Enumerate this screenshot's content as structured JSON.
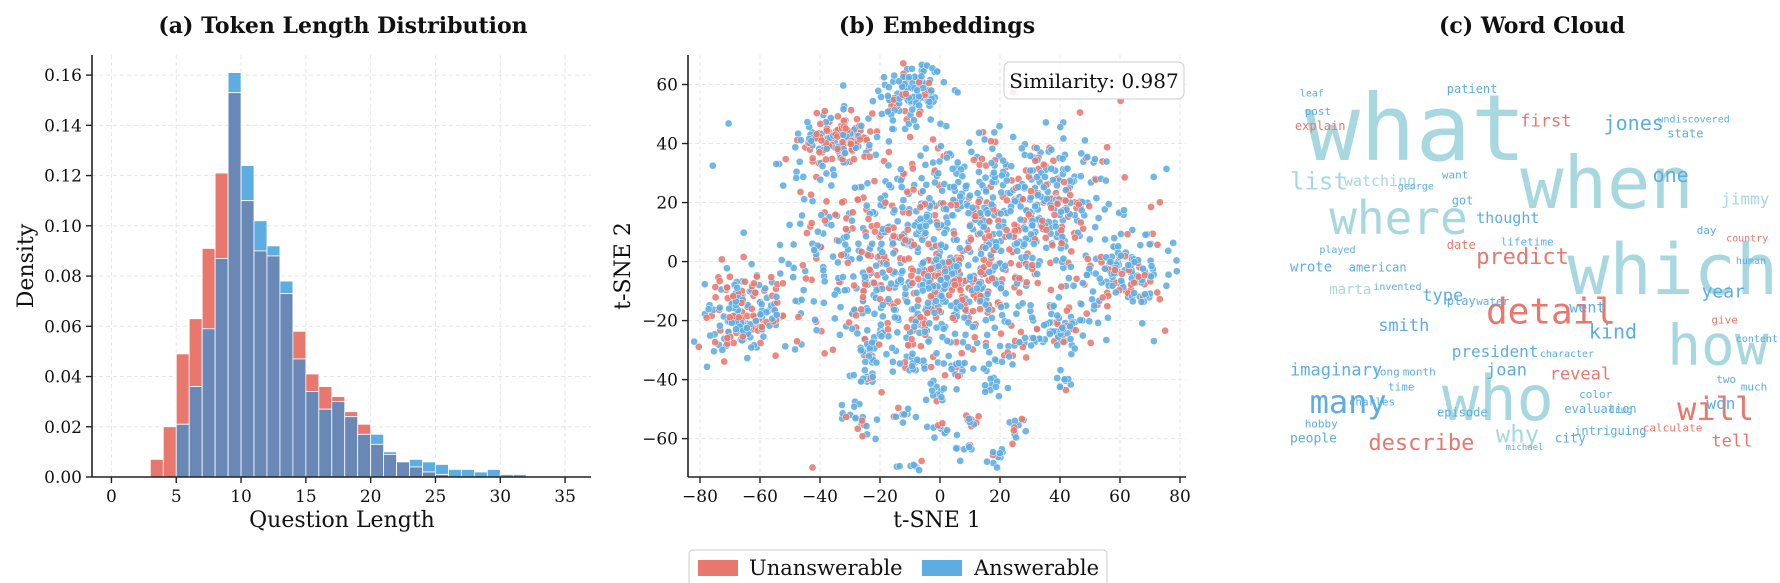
{
  "colors": {
    "unanswerable": "#e8776e",
    "answerable": "#5dade2",
    "overlap": "#6a88b5",
    "wordcloud_light": "#a8d8df"
  },
  "legend": {
    "unanswerable": "Unanswerable",
    "answerable": "Answerable"
  },
  "chart_data": [
    {
      "type": "bar",
      "title": "(a) Token Length Distribution",
      "xlabel": "Question Length",
      "ylabel": "Density",
      "xlim": [
        -1.5,
        37
      ],
      "ylim": [
        0,
        0.168
      ],
      "xticks": [
        "0",
        "5",
        "10",
        "15",
        "20",
        "25",
        "30",
        "35"
      ],
      "yticks": [
        "0.00",
        "0.02",
        "0.04",
        "0.06",
        "0.08",
        "0.10",
        "0.12",
        "0.14",
        "0.16"
      ],
      "bin_edges": [
        3,
        4,
        5,
        6,
        7,
        8,
        9,
        10,
        11,
        12,
        13,
        14,
        15,
        16,
        17,
        18,
        19,
        20,
        21,
        22,
        23,
        24,
        25,
        26,
        27,
        28,
        29,
        30,
        31,
        32,
        33,
        34,
        35
      ],
      "series": [
        {
          "name": "Unanswerable",
          "values": [
            0.007,
            0.02,
            0.049,
            0.063,
            0.091,
            0.121,
            0.153,
            0.11,
            0.09,
            0.088,
            0.073,
            0.058,
            0.041,
            0.036,
            0.032,
            0.026,
            0.021,
            0.013,
            0.009,
            0.006,
            0.004,
            0.002,
            0.001,
            0.0,
            0.0,
            0.0,
            0.0,
            0.0,
            0.0,
            0.0,
            0.0,
            0.0
          ]
        },
        {
          "name": "Answerable",
          "values": [
            0.0,
            0.0,
            0.021,
            0.036,
            0.059,
            0.087,
            0.161,
            0.124,
            0.102,
            0.092,
            0.078,
            0.047,
            0.034,
            0.027,
            0.03,
            0.024,
            0.017,
            0.017,
            0.01,
            0.006,
            0.007,
            0.006,
            0.005,
            0.003,
            0.003,
            0.002,
            0.003,
            0.001,
            0.001,
            0.0,
            0.0,
            0.0
          ]
        }
      ]
    },
    {
      "type": "scatter",
      "title": "(b) Embeddings",
      "xlabel": "t-SNE 1",
      "ylabel": "t-SNE 2",
      "xlim": [
        -84,
        82
      ],
      "ylim": [
        -73,
        70
      ],
      "xticks": [
        "−80",
        "−60",
        "−40",
        "−20",
        "0",
        "20",
        "40",
        "60",
        "80"
      ],
      "yticks": [
        "−60",
        "−40",
        "−20",
        "0",
        "20",
        "40",
        "60"
      ],
      "annotation": "Similarity: 0.987",
      "clusters": [
        {
          "cx": -10,
          "cy": 57,
          "sx": 6,
          "sy": 5,
          "n": 120,
          "red": 0.15
        },
        {
          "cx": -35,
          "cy": 42,
          "sx": 6,
          "sy": 4,
          "n": 140,
          "red": 0.55
        },
        {
          "cx": -65,
          "cy": -18,
          "sx": 7,
          "sy": 7,
          "n": 180,
          "red": 0.4
        },
        {
          "cx": -20,
          "cy": 5,
          "sx": 16,
          "sy": 15,
          "n": 260,
          "red": 0.35
        },
        {
          "cx": 5,
          "cy": -10,
          "sx": 9,
          "sy": 7,
          "n": 160,
          "red": 0.6
        },
        {
          "cx": 15,
          "cy": 15,
          "sx": 16,
          "sy": 14,
          "n": 300,
          "red": 0.3
        },
        {
          "cx": 35,
          "cy": 20,
          "sx": 10,
          "sy": 10,
          "n": 160,
          "red": 0.3
        },
        {
          "cx": 62,
          "cy": -5,
          "sx": 8,
          "sy": 6,
          "n": 130,
          "red": 0.3
        },
        {
          "cx": 40,
          "cy": -22,
          "sx": 6,
          "sy": 5,
          "n": 70,
          "red": 0.35
        },
        {
          "cx": -10,
          "cy": -20,
          "sx": 12,
          "sy": 8,
          "n": 100,
          "red": 0.3
        },
        {
          "cx": -22,
          "cy": -30,
          "sx": 3,
          "sy": 2,
          "n": 15,
          "red": 0.2
        },
        {
          "cx": -10,
          "cy": -35,
          "sx": 3,
          "sy": 2,
          "n": 15,
          "red": 0.2
        },
        {
          "cx": 5,
          "cy": -35,
          "sx": 3,
          "sy": 2,
          "n": 15,
          "red": 0.2
        },
        {
          "cx": 20,
          "cy": -32,
          "sx": 3,
          "sy": 2,
          "n": 12,
          "red": 0.3
        },
        {
          "cx": 28,
          "cy": -28,
          "sx": 3,
          "sy": 2,
          "n": 12,
          "red": 0.2
        },
        {
          "cx": -25,
          "cy": -40,
          "sx": 2,
          "sy": 2,
          "n": 12,
          "red": 0.2
        },
        {
          "cx": -1,
          "cy": -45,
          "sx": 2,
          "sy": 2,
          "n": 12,
          "red": 0.2
        },
        {
          "cx": 17,
          "cy": -42,
          "sx": 2,
          "sy": 2,
          "n": 12,
          "red": 0.2
        },
        {
          "cx": 41,
          "cy": -40,
          "sx": 2,
          "sy": 2,
          "n": 10,
          "red": 0.2
        },
        {
          "cx": -29,
          "cy": -51,
          "sx": 2,
          "sy": 2,
          "n": 10,
          "red": 0.3
        },
        {
          "cx": -26,
          "cy": -55,
          "sx": 2,
          "sy": 2,
          "n": 10,
          "red": 0.2
        },
        {
          "cx": -12,
          "cy": -52,
          "sx": 2,
          "sy": 2,
          "n": 10,
          "red": 0.2
        },
        {
          "cx": -1,
          "cy": -56,
          "sx": 2,
          "sy": 2,
          "n": 10,
          "red": 0.2
        },
        {
          "cx": 12,
          "cy": -54,
          "sx": 2,
          "sy": 2,
          "n": 10,
          "red": 0.3
        },
        {
          "cx": 26,
          "cy": -55,
          "sx": 2,
          "sy": 2,
          "n": 10,
          "red": 0.2
        },
        {
          "cx": 7,
          "cy": -63,
          "sx": 2,
          "sy": 2,
          "n": 10,
          "red": 0.2
        },
        {
          "cx": 19,
          "cy": -66,
          "sx": 2,
          "sy": 2,
          "n": 10,
          "red": 0.2
        },
        {
          "cx": -10,
          "cy": -69,
          "sx": 2,
          "sy": 1,
          "n": 8,
          "red": 0.2
        },
        {
          "cx": 0,
          "cy": 5,
          "sx": 38,
          "sy": 22,
          "n": 220,
          "red": 0.35
        }
      ]
    },
    {
      "type": "wordcloud",
      "title": "(c) Word Cloud",
      "words": [
        {
          "text": "what",
          "size": 92,
          "color": "light",
          "x": 0.03,
          "y": 0.22
        },
        {
          "text": "when",
          "size": 72,
          "color": "light",
          "x": 0.47,
          "y": 0.35
        },
        {
          "text": "which",
          "size": 70,
          "color": "light",
          "x": 0.58,
          "y": 0.58
        },
        {
          "text": "who",
          "size": 62,
          "color": "light",
          "x": 0.31,
          "y": 0.92
        },
        {
          "text": "how",
          "size": 56,
          "color": "light",
          "x": 0.77,
          "y": 0.77
        },
        {
          "text": "where",
          "size": 46,
          "color": "light",
          "x": 0.08,
          "y": 0.42
        },
        {
          "text": "detail",
          "size": 36,
          "color": "red",
          "x": 0.4,
          "y": 0.66
        },
        {
          "text": "many",
          "size": 32,
          "color": "blue",
          "x": 0.04,
          "y": 0.9
        },
        {
          "text": "will",
          "size": 32,
          "color": "red",
          "x": 0.79,
          "y": 0.92
        },
        {
          "text": "describe",
          "size": 22,
          "color": "red",
          "x": 0.16,
          "y": 1.0
        },
        {
          "text": "predict",
          "size": 22,
          "color": "red",
          "x": 0.38,
          "y": 0.5
        },
        {
          "text": "list",
          "size": 24,
          "color": "light",
          "x": 0.0,
          "y": 0.3
        },
        {
          "text": "jones",
          "size": 20,
          "color": "blue",
          "x": 0.64,
          "y": 0.14
        },
        {
          "text": "one",
          "size": 20,
          "color": "blue",
          "x": 0.74,
          "y": 0.28
        },
        {
          "text": "why",
          "size": 24,
          "color": "light",
          "x": 0.42,
          "y": 0.98
        },
        {
          "text": "year",
          "size": 18,
          "color": "blue",
          "x": 0.84,
          "y": 0.59
        },
        {
          "text": "kind",
          "size": 20,
          "color": "blue",
          "x": 0.61,
          "y": 0.7
        },
        {
          "text": "smith",
          "size": 17,
          "color": "blue",
          "x": 0.18,
          "y": 0.68
        },
        {
          "text": "type",
          "size": 17,
          "color": "blue",
          "x": 0.27,
          "y": 0.6
        },
        {
          "text": "imaginary",
          "size": 17,
          "color": "blue",
          "x": 0.0,
          "y": 0.8
        },
        {
          "text": "president",
          "size": 16,
          "color": "blue",
          "x": 0.33,
          "y": 0.75
        },
        {
          "text": "joan",
          "size": 17,
          "color": "blue",
          "x": 0.4,
          "y": 0.8
        },
        {
          "text": "reveal",
          "size": 17,
          "color": "red",
          "x": 0.53,
          "y": 0.81
        },
        {
          "text": "first",
          "size": 17,
          "color": "red",
          "x": 0.47,
          "y": 0.13
        },
        {
          "text": "tell",
          "size": 17,
          "color": "red",
          "x": 0.86,
          "y": 0.99
        },
        {
          "text": "won",
          "size": 16,
          "color": "blue",
          "x": 0.85,
          "y": 0.89
        },
        {
          "text": "thought",
          "size": 15,
          "color": "blue",
          "x": 0.38,
          "y": 0.39
        },
        {
          "text": "watching",
          "size": 15,
          "color": "light",
          "x": 0.11,
          "y": 0.29
        },
        {
          "text": "went",
          "size": 15,
          "color": "blue",
          "x": 0.57,
          "y": 0.63
        },
        {
          "text": "jimmy",
          "size": 16,
          "color": "light",
          "x": 0.88,
          "y": 0.34
        },
        {
          "text": "wrote",
          "size": 14,
          "color": "blue",
          "x": 0.0,
          "y": 0.52
        },
        {
          "text": "american",
          "size": 12,
          "color": "blue",
          "x": 0.12,
          "y": 0.52
        },
        {
          "text": "marta",
          "size": 14,
          "color": "light",
          "x": 0.08,
          "y": 0.58
        },
        {
          "text": "people",
          "size": 13,
          "color": "blue",
          "x": 0.0,
          "y": 0.98
        },
        {
          "text": "city",
          "size": 13,
          "color": "blue",
          "x": 0.54,
          "y": 0.98
        },
        {
          "text": "explain",
          "size": 12,
          "color": "red",
          "x": 0.01,
          "y": 0.14
        },
        {
          "text": "patient",
          "size": 12,
          "color": "blue",
          "x": 0.32,
          "y": 0.04
        },
        {
          "text": "state",
          "size": 12,
          "color": "blue",
          "x": 0.77,
          "y": 0.16
        },
        {
          "text": "got",
          "size": 12,
          "color": "blue",
          "x": 0.33,
          "y": 0.34
        },
        {
          "text": "date",
          "size": 12,
          "color": "red",
          "x": 0.32,
          "y": 0.46
        },
        {
          "text": "lifetime",
          "size": 11,
          "color": "blue",
          "x": 0.43,
          "y": 0.45
        },
        {
          "text": "water",
          "size": 11,
          "color": "blue",
          "x": 0.38,
          "y": 0.61
        },
        {
          "text": "play",
          "size": 12,
          "color": "blue",
          "x": 0.32,
          "y": 0.61
        },
        {
          "text": "month",
          "size": 11,
          "color": "blue",
          "x": 0.23,
          "y": 0.8
        },
        {
          "text": "long",
          "size": 11,
          "color": "blue",
          "x": 0.17,
          "y": 0.8
        },
        {
          "text": "time",
          "size": 11,
          "color": "blue",
          "x": 0.2,
          "y": 0.84
        },
        {
          "text": "charles",
          "size": 11,
          "color": "blue",
          "x": 0.12,
          "y": 0.88
        },
        {
          "text": "episode",
          "size": 12,
          "color": "blue",
          "x": 0.3,
          "y": 0.91
        },
        {
          "text": "evaluation",
          "size": 12,
          "color": "blue",
          "x": 0.56,
          "y": 0.9
        },
        {
          "text": "intriguing",
          "size": 12,
          "color": "blue",
          "x": 0.58,
          "y": 0.96
        },
        {
          "text": "hobby",
          "size": 11,
          "color": "blue",
          "x": 0.03,
          "y": 0.94
        },
        {
          "text": "color",
          "size": 11,
          "color": "blue",
          "x": 0.59,
          "y": 0.86
        },
        {
          "text": "calculate",
          "size": 11,
          "color": "red",
          "x": 0.72,
          "y": 0.95
        },
        {
          "text": "give",
          "size": 11,
          "color": "red",
          "x": 0.86,
          "y": 0.66
        },
        {
          "text": "country",
          "size": 10,
          "color": "red",
          "x": 0.89,
          "y": 0.44
        },
        {
          "text": "much",
          "size": 11,
          "color": "blue",
          "x": 0.92,
          "y": 0.84
        },
        {
          "text": "two",
          "size": 11,
          "color": "blue",
          "x": 0.87,
          "y": 0.82
        },
        {
          "text": "day",
          "size": 11,
          "color": "blue",
          "x": 0.83,
          "y": 0.42
        },
        {
          "text": "want",
          "size": 11,
          "color": "blue",
          "x": 0.31,
          "y": 0.27
        },
        {
          "text": "george",
          "size": 10,
          "color": "blue",
          "x": 0.22,
          "y": 0.3
        },
        {
          "text": "leaf",
          "size": 10,
          "color": "blue",
          "x": 0.02,
          "y": 0.05
        },
        {
          "text": "post",
          "size": 11,
          "color": "blue",
          "x": 0.03,
          "y": 0.1
        },
        {
          "text": "undiscovered",
          "size": 10,
          "color": "blue",
          "x": 0.75,
          "y": 0.12
        },
        {
          "text": "human",
          "size": 10,
          "color": "blue",
          "x": 0.91,
          "y": 0.5
        },
        {
          "text": "content",
          "size": 10,
          "color": "blue",
          "x": 0.92,
          "y": 0.71
        },
        {
          "text": "played",
          "size": 10,
          "color": "blue",
          "x": 0.06,
          "y": 0.47
        },
        {
          "text": "invented",
          "size": 10,
          "color": "blue",
          "x": 0.17,
          "y": 0.57
        },
        {
          "text": "character",
          "size": 10,
          "color": "blue",
          "x": 0.51,
          "y": 0.75
        },
        {
          "text": "drug",
          "size": 10,
          "color": "blue",
          "x": 0.65,
          "y": 0.9
        },
        {
          "text": "michael",
          "size": 9,
          "color": "blue",
          "x": 0.44,
          "y": 1.0
        }
      ]
    }
  ]
}
